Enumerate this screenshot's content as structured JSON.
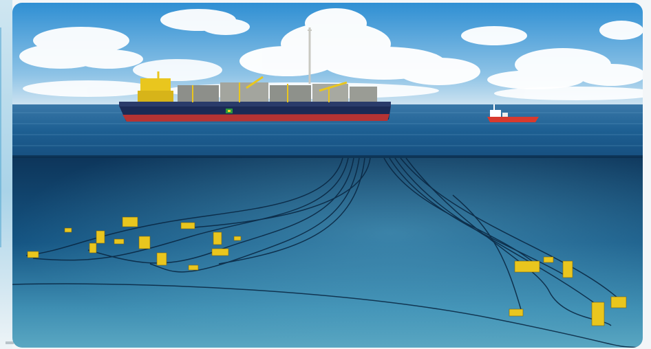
{
  "image": {
    "subject": "fpso-subsea-field",
    "colors": {
      "sky_top": "#2f8fd3",
      "sky_horizon": "#cfe4f1",
      "sea_surface": "#1d5f92",
      "sea_deep": "#0f3e66",
      "seabed": "#5aa7c2",
      "hull": "#1b2a55",
      "hull_bottom": "#b53333",
      "equipment": "#e9c61e",
      "support_vessel": "#d83a2e"
    }
  }
}
